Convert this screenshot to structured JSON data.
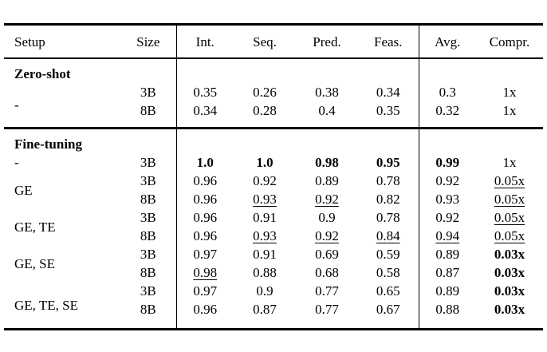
{
  "colors": {
    "text": "#000000",
    "background": "#ffffff",
    "rule": "#000000"
  },
  "table": {
    "columns": [
      "Setup",
      "Size",
      "Int.",
      "Seq.",
      "Pred.",
      "Feas.",
      "Avg.",
      "Compr."
    ],
    "sections": [
      {
        "title": "Zero-shot",
        "rows": [
          {
            "setup": "-",
            "size": "3B",
            "int": "0.35",
            "seq": "0.26",
            "pred": "0.38",
            "feas": "0.34",
            "avg": "0.3",
            "compr": "1x"
          },
          {
            "size": "8B",
            "int": "0.34",
            "seq": "0.28",
            "pred": "0.4",
            "feas": "0.35",
            "avg": "0.32",
            "compr": "1x"
          }
        ]
      },
      {
        "title": "Fine-tuning",
        "rows": [
          {
            "setup": "-",
            "size": "3B",
            "int": "1.0",
            "seq": "1.0",
            "pred": "0.98",
            "feas": "0.95",
            "avg": "0.99",
            "compr": "1x"
          },
          {
            "setup": "GE",
            "size": "3B",
            "int": "0.96",
            "seq": "0.92",
            "pred": "0.89",
            "feas": "0.78",
            "avg": "0.92",
            "compr": "0.05x"
          },
          {
            "size": "8B",
            "int": "0.96",
            "seq": "0.93",
            "pred": "0.92",
            "feas": "0.82",
            "avg": "0.93",
            "compr": "0.05x"
          },
          {
            "setup": "GE, TE",
            "size": "3B",
            "int": "0.96",
            "seq": "0.91",
            "pred": "0.9",
            "feas": "0.78",
            "avg": "0.92",
            "compr": "0.05x"
          },
          {
            "size": "8B",
            "int": "0.96",
            "seq": "0.93",
            "pred": "0.92",
            "feas": "0.84",
            "avg": "0.94",
            "compr": "0.05x"
          },
          {
            "setup": "GE, SE",
            "size": "3B",
            "int": "0.97",
            "seq": "0.91",
            "pred": "0.69",
            "feas": "0.59",
            "avg": "0.89",
            "compr": "0.03x"
          },
          {
            "size": "8B",
            "int": "0.98",
            "seq": "0.88",
            "pred": "0.68",
            "feas": "0.58",
            "avg": "0.87",
            "compr": "0.03x"
          },
          {
            "setup": "GE, TE, SE",
            "size": "3B",
            "int": "0.97",
            "seq": "0.9",
            "pred": "0.77",
            "feas": "0.65",
            "avg": "0.89",
            "compr": "0.03x"
          },
          {
            "size": "8B",
            "int": "0.96",
            "seq": "0.87",
            "pred": "0.77",
            "feas": "0.67",
            "avg": "0.88",
            "compr": "0.03x"
          }
        ]
      }
    ]
  }
}
